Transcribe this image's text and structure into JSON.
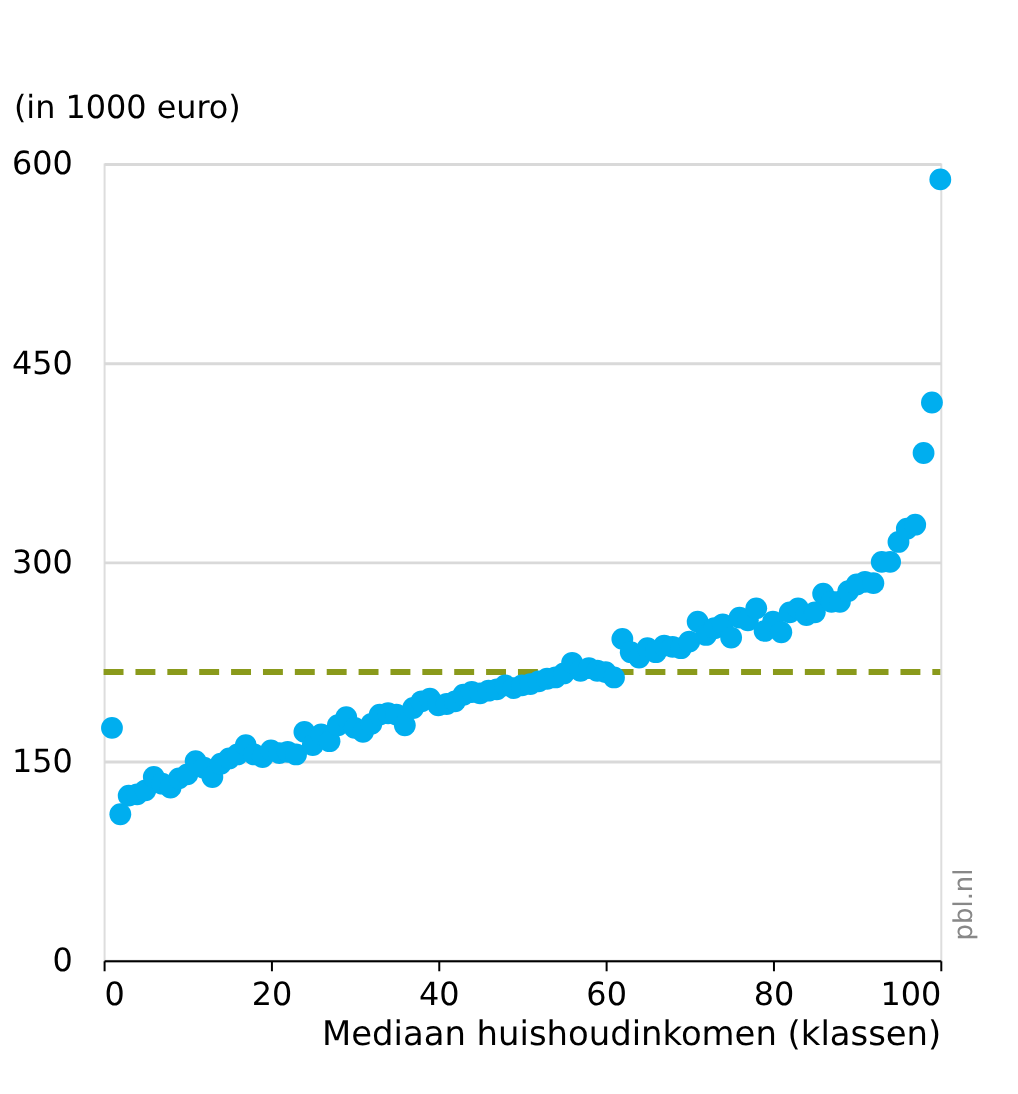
{
  "chart_data": {
    "type": "scatter",
    "ylabel": "(in 1000 euro)",
    "xlabel": "Mediaan huishoudinkomen (klassen)",
    "x": [
      1,
      2,
      3,
      4,
      5,
      6,
      7,
      8,
      9,
      10,
      11,
      12,
      13,
      14,
      15,
      16,
      17,
      18,
      19,
      20,
      21,
      22,
      23,
      24,
      25,
      26,
      27,
      28,
      29,
      30,
      31,
      32,
      33,
      34,
      35,
      36,
      37,
      38,
      39,
      40,
      41,
      42,
      43,
      44,
      45,
      46,
      47,
      48,
      49,
      50,
      51,
      52,
      53,
      54,
      55,
      56,
      57,
      58,
      59,
      60,
      61,
      62,
      63,
      64,
      65,
      66,
      67,
      68,
      69,
      70,
      71,
      72,
      73,
      74,
      75,
      76,
      77,
      78,
      79,
      80,
      81,
      82,
      83,
      84,
      85,
      86,
      87,
      88,
      89,
      90,
      91,
      92,
      93,
      94,
      95,
      96,
      97,
      98,
      99,
      100
    ],
    "series": [
      {
        "color": "#00aeef",
        "values": [
          175,
          110,
          124,
          125,
          128,
          138,
          133,
          130,
          137,
          140,
          150,
          145,
          138,
          148,
          152,
          155,
          162,
          155,
          153,
          158,
          156,
          157,
          155,
          172,
          162,
          170,
          165,
          177,
          183,
          175,
          172,
          178,
          185,
          186,
          185,
          177,
          190,
          195,
          197,
          192,
          193,
          195,
          200,
          202,
          201,
          203,
          204,
          207,
          205,
          207,
          208,
          210,
          212,
          213,
          216,
          224,
          218,
          220,
          218,
          217,
          213,
          242,
          232,
          228,
          235,
          232,
          237,
          236,
          235,
          240,
          255,
          245,
          250,
          253,
          243,
          258,
          256,
          265,
          248,
          255,
          247,
          262,
          265,
          260,
          262,
          276,
          270,
          270,
          278,
          283,
          285,
          284,
          300,
          300,
          315,
          325,
          328,
          382,
          420,
          588
        ]
      }
    ],
    "xlim": [
      0,
      100
    ],
    "xticks": [
      0,
      20,
      40,
      60,
      80,
      100
    ],
    "ylim": [
      0,
      600
    ],
    "yticks": [
      0,
      150,
      300,
      450,
      600
    ],
    "grid": "y",
    "marker": "circle",
    "ref_lines": [
      {
        "axis": "y",
        "value": 217,
        "color": "#8a9a1b",
        "line_style": "dashed"
      }
    ],
    "annotations": [
      "pbl.nl"
    ]
  }
}
